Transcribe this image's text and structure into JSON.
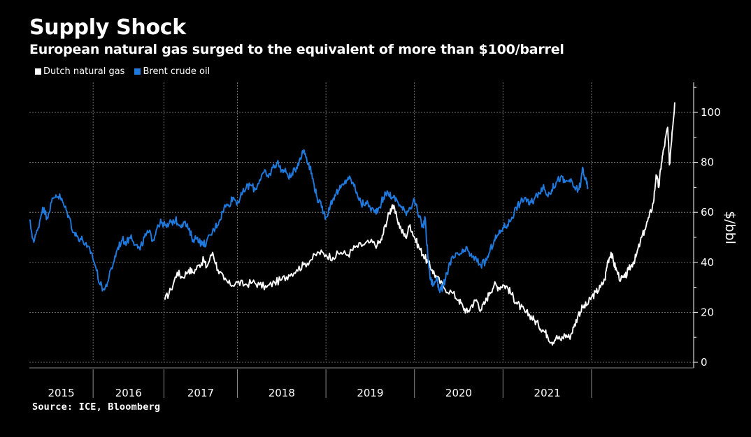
{
  "title": "Supply Shock",
  "subtitle": "European natural gas surged to the equivalent of more than $100/barrel",
  "source": "Source: ICE, Bloomberg",
  "colors": {
    "background": "#000000",
    "gas": "#ffffff",
    "oil": "#1f7ae0",
    "grid": "#8a8a8a"
  },
  "chart_data": {
    "type": "line",
    "ylabel": "$/bbl",
    "ylim": [
      0,
      112
    ],
    "xlim": [
      2014.65,
      2021.82
    ],
    "y_ticks": [
      0,
      20,
      40,
      60,
      80,
      100
    ],
    "x_tick_labels": [
      {
        "label": "2015",
        "x": 2015.0
      },
      {
        "label": "2016",
        "x": 2016.0
      },
      {
        "label": "2017",
        "x": 2017.0
      },
      {
        "label": "2018",
        "x": 2018.0
      },
      {
        "label": "2019",
        "x": 2019.0
      },
      {
        "label": "2020",
        "x": 2020.0
      },
      {
        "label": "2021",
        "x": 2021.0
      }
    ],
    "x_boundaries": [
      2015.37,
      2016.17,
      2017.0,
      2018.0,
      2019.0,
      2020.0,
      2021.0
    ],
    "grid": true,
    "legend_position": "top-left",
    "series": [
      {
        "name": "Dutch natural gas",
        "color": "#ffffff",
        "points": [
          [
            2016.18,
            25
          ],
          [
            2016.25,
            29
          ],
          [
            2016.32,
            36
          ],
          [
            2016.38,
            34
          ],
          [
            2016.45,
            37
          ],
          [
            2016.5,
            36
          ],
          [
            2016.57,
            39
          ],
          [
            2016.62,
            41
          ],
          [
            2016.65,
            38
          ],
          [
            2016.72,
            44
          ],
          [
            2016.78,
            37
          ],
          [
            2016.85,
            33
          ],
          [
            2016.92,
            31
          ],
          [
            2017.0,
            32
          ],
          [
            2017.08,
            31
          ],
          [
            2017.17,
            32
          ],
          [
            2017.25,
            31
          ],
          [
            2017.33,
            30
          ],
          [
            2017.42,
            32
          ],
          [
            2017.5,
            33
          ],
          [
            2017.58,
            35
          ],
          [
            2017.67,
            37
          ],
          [
            2017.75,
            39
          ],
          [
            2017.83,
            41
          ],
          [
            2017.92,
            44
          ],
          [
            2018.0,
            43
          ],
          [
            2018.08,
            42
          ],
          [
            2018.17,
            44
          ],
          [
            2018.25,
            43
          ],
          [
            2018.33,
            46
          ],
          [
            2018.42,
            47
          ],
          [
            2018.5,
            48
          ],
          [
            2018.58,
            47
          ],
          [
            2018.63,
            49
          ],
          [
            2018.67,
            55
          ],
          [
            2018.72,
            60
          ],
          [
            2018.75,
            63
          ],
          [
            2018.8,
            58
          ],
          [
            2018.85,
            53
          ],
          [
            2018.9,
            50
          ],
          [
            2018.95,
            55
          ],
          [
            2019.0,
            50
          ],
          [
            2019.05,
            46
          ],
          [
            2019.1,
            43
          ],
          [
            2019.15,
            40
          ],
          [
            2019.2,
            37
          ],
          [
            2019.25,
            34
          ],
          [
            2019.33,
            30
          ],
          [
            2019.42,
            28
          ],
          [
            2019.5,
            25
          ],
          [
            2019.55,
            22
          ],
          [
            2019.6,
            20
          ],
          [
            2019.65,
            23
          ],
          [
            2019.7,
            25
          ],
          [
            2019.75,
            21
          ],
          [
            2019.8,
            24
          ],
          [
            2019.85,
            28
          ],
          [
            2019.9,
            31
          ],
          [
            2019.95,
            30
          ],
          [
            2020.0,
            31
          ],
          [
            2020.05,
            30
          ],
          [
            2020.1,
            27
          ],
          [
            2020.15,
            24
          ],
          [
            2020.2,
            22
          ],
          [
            2020.25,
            20
          ],
          [
            2020.3,
            19
          ],
          [
            2020.35,
            17
          ],
          [
            2020.4,
            15
          ],
          [
            2020.45,
            13
          ],
          [
            2020.5,
            11
          ],
          [
            2020.55,
            8
          ],
          [
            2020.6,
            10
          ],
          [
            2020.65,
            9
          ],
          [
            2020.7,
            11
          ],
          [
            2020.75,
            10
          ],
          [
            2020.8,
            14
          ],
          [
            2020.85,
            19
          ],
          [
            2020.9,
            22
          ],
          [
            2020.95,
            23
          ],
          [
            2021.0,
            26
          ],
          [
            2021.05,
            28
          ],
          [
            2021.1,
            30
          ],
          [
            2021.15,
            33
          ],
          [
            2021.18,
            40
          ],
          [
            2021.22,
            44
          ],
          [
            2021.25,
            40
          ],
          [
            2021.28,
            37
          ],
          [
            2021.33,
            33
          ],
          [
            2021.38,
            34
          ],
          [
            2021.42,
            37
          ],
          [
            2021.47,
            40
          ],
          [
            2021.5,
            42
          ],
          [
            2021.55,
            48
          ],
          [
            2021.6,
            53
          ],
          [
            2021.65,
            58
          ],
          [
            2021.7,
            64
          ],
          [
            2021.73,
            75
          ],
          [
            2021.76,
            70
          ],
          [
            2021.79,
            80
          ],
          [
            2021.82,
            86
          ],
          [
            2021.86,
            94
          ],
          [
            2021.88,
            79
          ],
          [
            2021.91,
            92
          ],
          [
            2021.94,
            104
          ]
        ]
      },
      {
        "name": "Brent crude oil",
        "color": "#1f7ae0",
        "points": [
          [
            2014.65,
            57
          ],
          [
            2014.7,
            48
          ],
          [
            2014.75,
            54
          ],
          [
            2014.8,
            62
          ],
          [
            2014.85,
            58
          ],
          [
            2014.9,
            64
          ],
          [
            2014.95,
            67
          ],
          [
            2015.0,
            66
          ],
          [
            2015.05,
            62
          ],
          [
            2015.1,
            58
          ],
          [
            2015.15,
            52
          ],
          [
            2015.2,
            50
          ],
          [
            2015.25,
            49
          ],
          [
            2015.3,
            46
          ],
          [
            2015.35,
            44
          ],
          [
            2015.4,
            38
          ],
          [
            2015.45,
            31
          ],
          [
            2015.5,
            29
          ],
          [
            2015.55,
            34
          ],
          [
            2015.6,
            40
          ],
          [
            2015.65,
            46
          ],
          [
            2015.7,
            49
          ],
          [
            2015.75,
            48
          ],
          [
            2015.8,
            51
          ],
          [
            2015.85,
            47
          ],
          [
            2015.9,
            45
          ],
          [
            2015.95,
            50
          ],
          [
            2016.0,
            52
          ],
          [
            2016.05,
            49
          ],
          [
            2016.1,
            55
          ],
          [
            2016.15,
            56
          ],
          [
            2016.2,
            54
          ],
          [
            2016.25,
            56
          ],
          [
            2016.3,
            57
          ],
          [
            2016.35,
            55
          ],
          [
            2016.4,
            56
          ],
          [
            2016.45,
            53
          ],
          [
            2016.5,
            49
          ],
          [
            2016.55,
            50
          ],
          [
            2016.6,
            47
          ],
          [
            2016.65,
            48
          ],
          [
            2016.7,
            51
          ],
          [
            2016.75,
            54
          ],
          [
            2016.8,
            57
          ],
          [
            2016.85,
            62
          ],
          [
            2016.9,
            63
          ],
          [
            2016.95,
            66
          ],
          [
            2017.0,
            64
          ],
          [
            2017.05,
            67
          ],
          [
            2017.1,
            70
          ],
          [
            2017.15,
            71
          ],
          [
            2017.2,
            69
          ],
          [
            2017.25,
            73
          ],
          [
            2017.3,
            76
          ],
          [
            2017.35,
            74
          ],
          [
            2017.4,
            78
          ],
          [
            2017.45,
            80
          ],
          [
            2017.5,
            77
          ],
          [
            2017.55,
            76
          ],
          [
            2017.6,
            74
          ],
          [
            2017.65,
            77
          ],
          [
            2017.7,
            81
          ],
          [
            2017.75,
            85
          ],
          [
            2017.78,
            82
          ],
          [
            2017.82,
            78
          ],
          [
            2017.86,
            72
          ],
          [
            2017.9,
            66
          ],
          [
            2017.95,
            62
          ],
          [
            2018.0,
            58
          ],
          [
            2018.05,
            63
          ],
          [
            2018.1,
            67
          ],
          [
            2018.15,
            69
          ],
          [
            2018.2,
            71
          ],
          [
            2018.25,
            74
          ],
          [
            2018.3,
            72
          ],
          [
            2018.35,
            68
          ],
          [
            2018.4,
            63
          ],
          [
            2018.45,
            64
          ],
          [
            2018.5,
            62
          ],
          [
            2018.55,
            60
          ],
          [
            2018.6,
            62
          ],
          [
            2018.65,
            66
          ],
          [
            2018.7,
            68
          ],
          [
            2018.75,
            66
          ],
          [
            2018.8,
            65
          ],
          [
            2018.85,
            62
          ],
          [
            2018.9,
            60
          ],
          [
            2018.95,
            62
          ],
          [
            2019.0,
            65
          ],
          [
            2019.05,
            58
          ],
          [
            2019.1,
            54
          ],
          [
            2019.12,
            58
          ],
          [
            2019.15,
            43
          ],
          [
            2019.18,
            33
          ],
          [
            2019.22,
            31
          ],
          [
            2019.25,
            34
          ],
          [
            2019.28,
            29
          ],
          [
            2019.32,
            30
          ],
          [
            2019.35,
            33
          ],
          [
            2019.4,
            40
          ],
          [
            2019.45,
            42
          ],
          [
            2019.5,
            43
          ],
          [
            2019.55,
            44
          ],
          [
            2019.6,
            45
          ],
          [
            2019.65,
            42
          ],
          [
            2019.7,
            41
          ],
          [
            2019.75,
            39
          ],
          [
            2019.8,
            40
          ],
          [
            2019.85,
            44
          ],
          [
            2019.9,
            49
          ],
          [
            2019.95,
            51
          ],
          [
            2020.0,
            54
          ],
          [
            2020.05,
            55
          ],
          [
            2020.1,
            58
          ],
          [
            2020.15,
            62
          ],
          [
            2020.2,
            64
          ],
          [
            2020.25,
            66
          ],
          [
            2020.3,
            63
          ],
          [
            2020.35,
            65
          ],
          [
            2020.4,
            68
          ],
          [
            2020.45,
            70
          ],
          [
            2020.5,
            67
          ],
          [
            2020.55,
            69
          ],
          [
            2020.6,
            72
          ],
          [
            2020.65,
            74
          ],
          [
            2020.7,
            72
          ],
          [
            2020.75,
            73
          ],
          [
            2020.8,
            70
          ],
          [
            2020.85,
            69
          ],
          [
            2020.88,
            72
          ],
          [
            2020.9,
            78
          ],
          [
            2020.93,
            73
          ],
          [
            2020.96,
            70
          ]
        ]
      }
    ]
  }
}
